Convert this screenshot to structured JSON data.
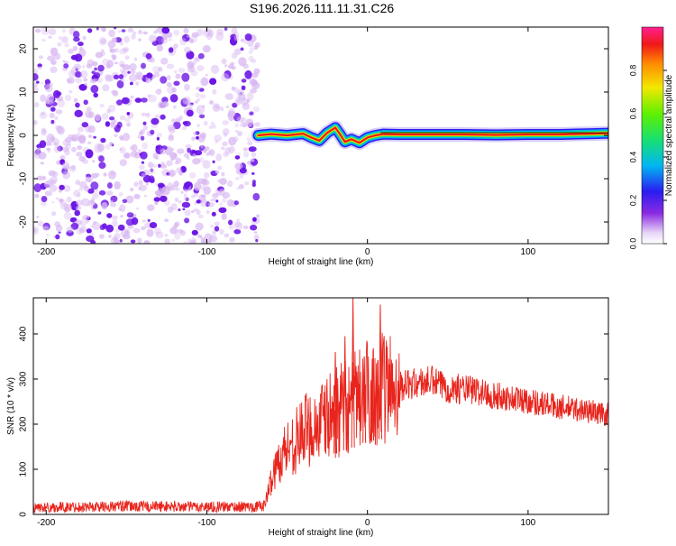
{
  "title": "S196.2026.111.11.31.C26",
  "chart_data": [
    {
      "type": "heatmap",
      "xlabel": "Height of straight line (km)",
      "ylabel": "Frequency (Hz)",
      "xlim": [
        -208,
        150
      ],
      "ylim": [
        -25,
        25
      ],
      "xticks": [
        -200,
        -100,
        0,
        100
      ],
      "xtick_labels": [
        "-200",
        "-100",
        "0",
        "100"
      ],
      "yticks": [
        -20,
        -10,
        0,
        10,
        20
      ],
      "ytick_labels": [
        "-20",
        "-10",
        "0",
        "10",
        "20"
      ],
      "noise_region_x": [
        -208,
        -68
      ],
      "signal_region_x": [
        -68,
        150
      ],
      "ridge": {
        "x": [
          -68,
          -60,
          -50,
          -40,
          -35,
          -30,
          -25,
          -20,
          -17,
          -14,
          -10,
          -5,
          0,
          5,
          10,
          20,
          40,
          60,
          80,
          100,
          120,
          140,
          150
        ],
        "y": [
          0.0,
          0.3,
          0.0,
          0.4,
          -0.5,
          -1.2,
          0.6,
          1.8,
          0.2,
          -1.5,
          -0.9,
          -1.7,
          -0.5,
          0.0,
          0.3,
          0.2,
          0.2,
          0.2,
          0.1,
          0.2,
          0.2,
          0.4,
          0.5
        ]
      },
      "colorbar": {
        "label": "Normalized spectral amplitude",
        "range": [
          0,
          1
        ],
        "ticks": [
          0.0,
          0.2,
          0.4,
          0.6,
          0.8
        ],
        "tick_labels": [
          "0.0",
          "0.2",
          "0.4",
          "0.6",
          "0.8"
        ]
      },
      "colors": {
        "noise_light": "#d9b8f2",
        "noise_dark": "#6a12e6"
      }
    },
    {
      "type": "line",
      "xlabel": "Height of straight line (km)",
      "ylabel": "SNR (10 * v/v)",
      "xlim": [
        -208,
        150
      ],
      "ylim": [
        0,
        480
      ],
      "xticks": [
        -200,
        -100,
        0,
        100
      ],
      "xtick_labels": [
        "-200",
        "-100",
        "0",
        "100"
      ],
      "yticks": [
        0,
        100,
        200,
        300,
        400
      ],
      "ytick_labels": [
        "0",
        "100",
        "200",
        "300",
        "400"
      ],
      "series": [
        {
          "name": "SNR",
          "color": "#e8241c",
          "x": [
            -208,
            -150,
            -100,
            -70,
            -64,
            -60,
            -55,
            -50,
            -45,
            -40,
            -30,
            -20,
            -15,
            -10,
            -5,
            0,
            5,
            10,
            20,
            30,
            40,
            50,
            60,
            70,
            80,
            100,
            120,
            140,
            150
          ],
          "y": [
            15,
            18,
            17,
            17,
            20,
            75,
            120,
            150,
            160,
            185,
            200,
            225,
            235,
            245,
            255,
            270,
            275,
            280,
            285,
            290,
            295,
            280,
            278,
            272,
            262,
            252,
            238,
            228,
            220
          ]
        }
      ],
      "spikes": [
        {
          "x": -9,
          "y": 480
        },
        {
          "x": 8,
          "y": 465
        },
        {
          "x": -14,
          "y": 395
        },
        {
          "x": -2,
          "y": 350
        },
        {
          "x": 3,
          "y": 345
        },
        {
          "x": -20,
          "y": 360
        }
      ]
    }
  ]
}
